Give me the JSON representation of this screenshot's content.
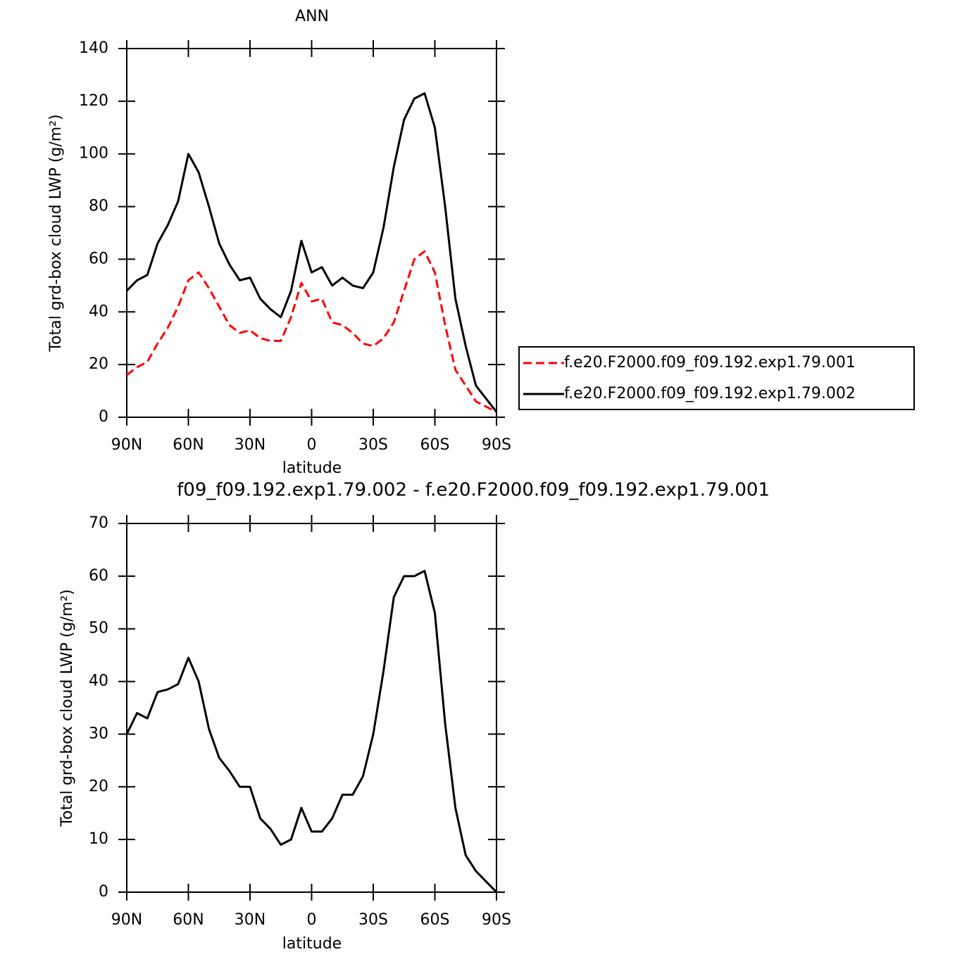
{
  "chart_data": [
    {
      "type": "line",
      "title": "ANN",
      "xlabel": "latitude",
      "ylabel": "Total grd-box cloud LWP (g/m²)",
      "x": [
        90,
        85,
        80,
        75,
        70,
        65,
        60,
        55,
        50,
        45,
        40,
        35,
        30,
        25,
        20,
        15,
        10,
        5,
        0,
        -5,
        -10,
        -15,
        -20,
        -25,
        -30,
        -35,
        -40,
        -45,
        -50,
        -55,
        -60,
        -65,
        -70,
        -75,
        -80,
        -85,
        -90
      ],
      "xlim": [
        90,
        -90
      ],
      "xticks": [
        {
          "value": 90,
          "label": "90N"
        },
        {
          "value": 60,
          "label": "60N"
        },
        {
          "value": 30,
          "label": "30N"
        },
        0,
        {
          "value": -30,
          "label": "30S"
        },
        {
          "value": -60,
          "label": "60S"
        },
        {
          "value": -90,
          "label": "90S"
        }
      ],
      "ylim": [
        0,
        140
      ],
      "yticks": [
        0,
        20,
        40,
        60,
        80,
        100,
        120,
        140
      ],
      "legend": "right",
      "series": [
        {
          "name": "f.e20.F2000.f09_f09.192.exp1.79.001",
          "color": "#ff0000",
          "linestyle": "dashed",
          "values": [
            16,
            19,
            21,
            28,
            34,
            42,
            52,
            55,
            49,
            42,
            35,
            32,
            33,
            30,
            29,
            29,
            38,
            51,
            44,
            45,
            36,
            35,
            32,
            28,
            27,
            30,
            36,
            48,
            60,
            63,
            55,
            35,
            18,
            12,
            6,
            4,
            2
          ]
        },
        {
          "name": "f.e20.F2000.f09_f09.192.exp1.79.002",
          "color": "#000000",
          "linestyle": "solid",
          "values": [
            48,
            52,
            54,
            66,
            73,
            82,
            100,
            93,
            80,
            66,
            58,
            52,
            53,
            45,
            41,
            38,
            48,
            67,
            55,
            57,
            50,
            53,
            50,
            49,
            55,
            72,
            95,
            113,
            121,
            123,
            110,
            80,
            45,
            27,
            12,
            7,
            2
          ]
        }
      ]
    },
    {
      "type": "line",
      "title": "f09_f09.192.exp1.79.002 - f.e20.F2000.f09_f09.192.exp1.79.001",
      "xlabel": "latitude",
      "ylabel": "Total grd-box cloud LWP (g/m²)",
      "x": [
        90,
        85,
        80,
        75,
        70,
        65,
        60,
        55,
        50,
        45,
        40,
        35,
        30,
        25,
        20,
        15,
        10,
        5,
        0,
        -5,
        -10,
        -15,
        -20,
        -25,
        -30,
        -35,
        -40,
        -45,
        -50,
        -55,
        -60,
        -65,
        -70,
        -75,
        -80,
        -85,
        -90
      ],
      "xlim": [
        90,
        -90
      ],
      "xticks": [
        {
          "value": 90,
          "label": "90N"
        },
        {
          "value": 60,
          "label": "60N"
        },
        {
          "value": 30,
          "label": "30N"
        },
        0,
        {
          "value": -30,
          "label": "30S"
        },
        {
          "value": -60,
          "label": "60S"
        },
        {
          "value": -90,
          "label": "90S"
        }
      ],
      "ylim": [
        0,
        70
      ],
      "yticks": [
        0,
        10,
        20,
        30,
        40,
        50,
        60,
        70
      ],
      "series": [
        {
          "color": "#000000",
          "linestyle": "solid",
          "values": [
            30,
            34,
            33,
            38,
            38.5,
            39.5,
            44.5,
            40,
            31,
            25.5,
            23,
            20,
            20,
            14,
            12,
            9,
            10,
            16,
            11.5,
            11.5,
            14,
            18.5,
            18.5,
            22,
            30,
            42,
            56,
            60,
            60,
            61,
            53,
            32,
            16,
            7,
            4,
            2,
            0
          ]
        }
      ]
    }
  ]
}
